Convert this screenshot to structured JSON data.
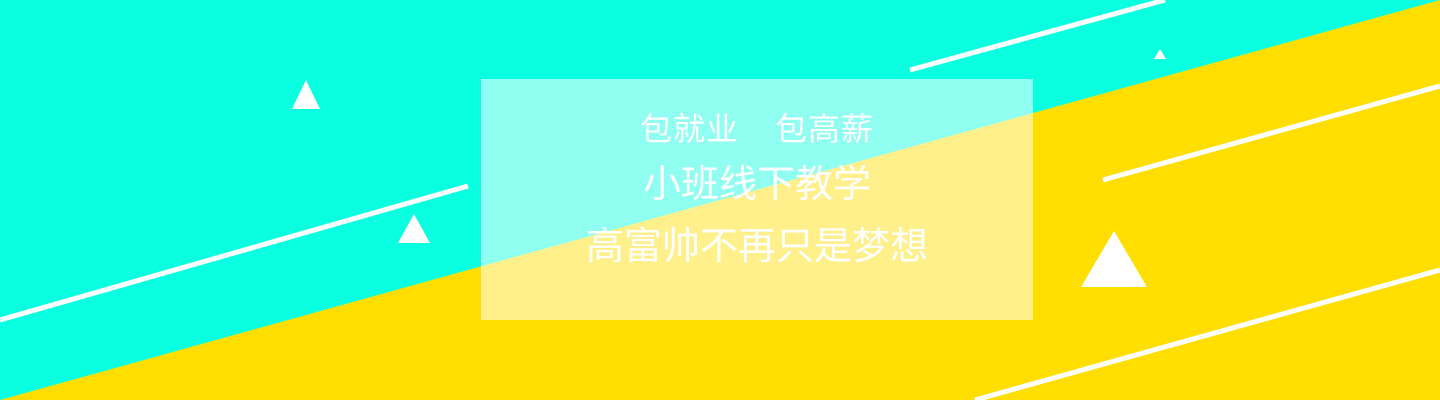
{
  "banner": {
    "tagline_left": "包就业",
    "tagline_right": "包高薪",
    "headline": "小班线下教学",
    "subheadline": "高富帅不再只是梦想"
  },
  "colors": {
    "cyan": "#0affe0",
    "yellow": "#ffde00",
    "white": "#ffffff"
  }
}
